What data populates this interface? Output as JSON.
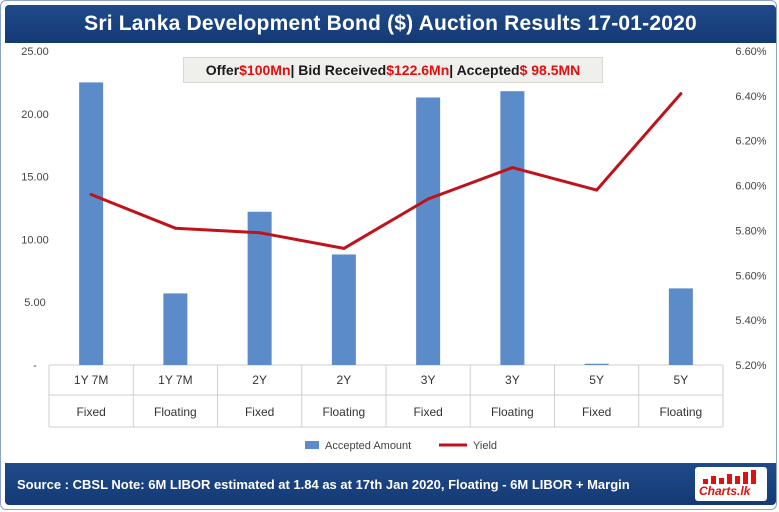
{
  "header": {
    "title": "Sri Lanka Development Bond ($)  Auction Results 17-01-2020"
  },
  "info": {
    "offer_label": "Offer ",
    "offer_value": "$100Mn",
    "bid_label": "| Bid Received ",
    "bid_value": "$122.6Mn",
    "accepted_label": " | Accepted ",
    "accepted_value": "$ 98.5MN"
  },
  "footer": {
    "source_text": "Source : CBSL  Note: 6M LIBOR estimated at 1.84 as at 17th Jan 2020, Floating - 6M LIBOR + Margin"
  },
  "logo": {
    "text": "Charts.lk",
    "icon": "bar-chart-icon"
  },
  "colors": {
    "bar": "#5b8bc9",
    "line": "#c0121a",
    "header": "#1f4a8a",
    "highlight": "#e01010"
  },
  "chart_data": {
    "type": "bar",
    "categories": [
      [
        "1Y 7M",
        "Fixed"
      ],
      [
        "1Y 7M",
        "Floating"
      ],
      [
        "2Y",
        "Fixed"
      ],
      [
        "2Y",
        "Floating"
      ],
      [
        "3Y",
        "Fixed"
      ],
      [
        "3Y",
        "Floating"
      ],
      [
        "5Y",
        "Fixed"
      ],
      [
        "5Y",
        "Floating"
      ]
    ],
    "series": [
      {
        "name": "Accepted Amount",
        "type": "bar",
        "axis": "left",
        "values": [
          22.5,
          5.7,
          12.2,
          8.8,
          21.3,
          21.8,
          0.1,
          6.1
        ]
      },
      {
        "name": "Yield",
        "type": "line",
        "axis": "right",
        "values": [
          5.96,
          5.81,
          5.79,
          5.72,
          5.94,
          6.08,
          5.98,
          6.41
        ]
      }
    ],
    "y_left": {
      "ticks": [
        "-",
        "5.00",
        "10.00",
        "15.00",
        "20.00",
        "25.00"
      ],
      "range": [
        0,
        25
      ]
    },
    "y_right": {
      "ticks": [
        "5.20%",
        "5.40%",
        "5.60%",
        "5.80%",
        "6.00%",
        "6.20%",
        "6.40%",
        "6.60%"
      ],
      "range": [
        5.2,
        6.6
      ]
    },
    "legend_position": "bottom",
    "grid": false
  }
}
